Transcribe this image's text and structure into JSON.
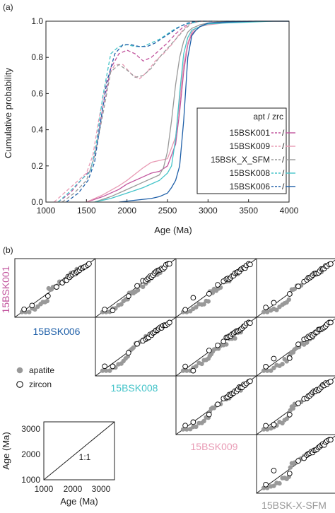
{
  "panel_labels": {
    "a": "(a)",
    "b": "(b)"
  },
  "chart_data": [
    {
      "type": "line",
      "panel": "(a)",
      "xlabel": "Age (Ma)",
      "ylabel": "Cumulative probability",
      "xlim": [
        1000,
        4000
      ],
      "ylim": [
        0,
        1
      ],
      "xticks": [
        "1000",
        "1500",
        "2000",
        "2500",
        "3000",
        "3500",
        "4000"
      ],
      "yticks": [
        "0.0",
        "0.2",
        "0.4",
        "0.6",
        "0.8",
        "1.0"
      ],
      "legend": {
        "position": "right",
        "header": "apt / zrc",
        "separator": "/",
        "samples": [
          "15BSK001",
          "15BSK009",
          "15BSK_X_SFM",
          "15BSK008",
          "15BSK006"
        ]
      },
      "series": [
        {
          "name": "15BSK001",
          "mineral": "apatite",
          "dashed": true,
          "color": "#c2559e",
          "x": [
            1150,
            1300,
            1450,
            1550,
            1620,
            1700,
            1800,
            1900,
            2000,
            2100,
            2200,
            2300,
            2400,
            2500,
            2600,
            2700,
            2800,
            2900,
            3000,
            3100
          ],
          "y": [
            0.0,
            0.05,
            0.13,
            0.18,
            0.3,
            0.52,
            0.74,
            0.82,
            0.84,
            0.82,
            0.78,
            0.8,
            0.84,
            0.88,
            0.93,
            0.97,
            0.99,
            1.0,
            1.0,
            1.0
          ]
        },
        {
          "name": "15BSK009",
          "mineral": "apatite",
          "dashed": true,
          "color": "#e89ab4",
          "x": [
            1100,
            1250,
            1400,
            1500,
            1580,
            1650,
            1750,
            1850,
            1950,
            2050,
            2150,
            2250,
            2350,
            2450,
            2550,
            2650,
            2750,
            2850,
            2950
          ],
          "y": [
            0.0,
            0.06,
            0.12,
            0.16,
            0.26,
            0.45,
            0.68,
            0.76,
            0.76,
            0.71,
            0.68,
            0.72,
            0.78,
            0.82,
            0.87,
            0.93,
            0.98,
            1.0,
            1.0
          ]
        },
        {
          "name": "15BSK_X_SFM",
          "mineral": "apatite",
          "dashed": true,
          "color": "#999999",
          "x": [
            1200,
            1350,
            1500,
            1600,
            1700,
            1800,
            1900,
            2000,
            2100,
            2200,
            2300,
            2400,
            2500,
            2600,
            2700,
            2800,
            2900,
            3000
          ],
          "y": [
            0.0,
            0.05,
            0.12,
            0.25,
            0.48,
            0.72,
            0.76,
            0.73,
            0.69,
            0.7,
            0.74,
            0.8,
            0.85,
            0.9,
            0.95,
            0.99,
            1.0,
            1.0
          ]
        },
        {
          "name": "15BSK008",
          "mineral": "apatite",
          "dashed": true,
          "color": "#45c4c9",
          "x": [
            1150,
            1300,
            1450,
            1550,
            1620,
            1700,
            1800,
            1900,
            2000,
            2100,
            2200,
            2300,
            2400,
            2500,
            2600,
            2700,
            2800,
            2900,
            3000,
            3600
          ],
          "y": [
            0.0,
            0.06,
            0.13,
            0.17,
            0.32,
            0.58,
            0.82,
            0.86,
            0.87,
            0.86,
            0.86,
            0.88,
            0.9,
            0.93,
            0.96,
            0.98,
            0.99,
            1.0,
            1.0,
            1.0
          ]
        },
        {
          "name": "15BSK006",
          "mineral": "apatite",
          "dashed": true,
          "color": "#1e5fa8",
          "x": [
            1250,
            1400,
            1520,
            1600,
            1680,
            1750,
            1850,
            1950,
            2050,
            2150,
            2250,
            2350,
            2450,
            2550,
            2650,
            2750,
            2850,
            2950,
            3050
          ],
          "y": [
            0.0,
            0.05,
            0.12,
            0.22,
            0.46,
            0.66,
            0.82,
            0.87,
            0.87,
            0.86,
            0.86,
            0.88,
            0.91,
            0.94,
            0.97,
            0.99,
            1.0,
            1.0,
            1.0
          ]
        },
        {
          "name": "15BSK001",
          "mineral": "zircon",
          "dashed": false,
          "color": "#c2559e",
          "x": [
            1500,
            1700,
            1900,
            2000,
            2200,
            2300,
            2400,
            2500,
            2600,
            2650,
            2700,
            2750,
            2800,
            2850,
            2900,
            3000,
            3200,
            3500,
            4000
          ],
          "y": [
            0.0,
            0.03,
            0.07,
            0.1,
            0.14,
            0.16,
            0.17,
            0.2,
            0.32,
            0.5,
            0.72,
            0.87,
            0.93,
            0.95,
            0.97,
            0.99,
            0.995,
            1.0,
            1.0
          ]
        },
        {
          "name": "15BSK009",
          "mineral": "zircon",
          "dashed": false,
          "color": "#e89ab4",
          "x": [
            1500,
            1700,
            1900,
            2000,
            2200,
            2300,
            2400,
            2500,
            2600,
            2650,
            2700,
            2750,
            2800,
            2850,
            2900,
            3000,
            3200,
            3500,
            4000
          ],
          "y": [
            0.0,
            0.04,
            0.09,
            0.12,
            0.19,
            0.22,
            0.23,
            0.24,
            0.36,
            0.55,
            0.76,
            0.88,
            0.94,
            0.96,
            0.97,
            0.98,
            0.99,
            1.0,
            1.0
          ]
        },
        {
          "name": "15BSK_X_SFM",
          "mineral": "zircon",
          "dashed": false,
          "color": "#999999",
          "x": [
            1600,
            1800,
            2000,
            2200,
            2400,
            2450,
            2500,
            2550,
            2600,
            2650,
            2700,
            2750,
            2800,
            2900,
            3000,
            3200,
            3500,
            4000
          ],
          "y": [
            0.0,
            0.03,
            0.07,
            0.11,
            0.15,
            0.19,
            0.28,
            0.45,
            0.65,
            0.8,
            0.89,
            0.94,
            0.96,
            0.98,
            0.99,
            1.0,
            1.0,
            1.0
          ]
        },
        {
          "name": "15BSK008",
          "mineral": "zircon",
          "dashed": false,
          "color": "#45c4c9",
          "x": [
            1600,
            1800,
            2000,
            2200,
            2300,
            2400,
            2500,
            2550,
            2600,
            2650,
            2700,
            2750,
            2800,
            2900,
            3000,
            3200,
            3500,
            3800,
            4000
          ],
          "y": [
            0.0,
            0.02,
            0.05,
            0.08,
            0.1,
            0.12,
            0.16,
            0.2,
            0.35,
            0.6,
            0.82,
            0.91,
            0.95,
            0.97,
            0.985,
            0.99,
            0.995,
            1.0,
            1.0
          ]
        },
        {
          "name": "15BSK006",
          "mineral": "zircon",
          "dashed": false,
          "color": "#1e5fa8",
          "x": [
            1900,
            2100,
            2300,
            2400,
            2500,
            2550,
            2600,
            2650,
            2700,
            2750,
            2800,
            2850,
            2900,
            3000,
            3200,
            3600,
            4000
          ],
          "y": [
            0.0,
            0.01,
            0.02,
            0.03,
            0.05,
            0.08,
            0.12,
            0.2,
            0.45,
            0.8,
            0.92,
            0.95,
            0.97,
            0.99,
            0.995,
            1.0,
            1.0
          ]
        }
      ]
    },
    {
      "type": "scatter",
      "panel": "(b)",
      "layout": "pairwise Q-Q matrix (upper triangle); diagonal labels name the samples",
      "sample_labels": [
        {
          "text": "15BSK001",
          "color": "#c2559e"
        },
        {
          "text": "15BSK006",
          "color": "#1e5fa8"
        },
        {
          "text": "15BSK008",
          "color": "#45c4c9"
        },
        {
          "text": "15BSK009",
          "color": "#e89ab4"
        },
        {
          "text": "15BSK-X-SFM",
          "color": "#999999"
        }
      ],
      "legend": [
        {
          "label": "apatite",
          "marker": "filled",
          "color": "#999999"
        },
        {
          "label": "zircon",
          "marker": "open",
          "color": "#000000"
        }
      ],
      "scale_key": {
        "xlabel": "Age (Ma)",
        "ylabel": "Age (Ma)",
        "xticks": [
          "1000",
          "2000",
          "3000"
        ],
        "yticks": [
          "1000",
          "2000",
          "3000"
        ],
        "xlim": [
          1000,
          3600
        ],
        "ylim": [
          1000,
          3600
        ],
        "line_label": "1:1"
      },
      "pairs": [
        {
          "row": "15BSK006",
          "col": "15BSK001"
        },
        {
          "row": "15BSK006",
          "col": "15BSK008"
        },
        {
          "row": "15BSK006",
          "col": "15BSK009"
        },
        {
          "row": "15BSK006",
          "col": "15BSK-X-SFM"
        },
        {
          "row": "15BSK008",
          "col": "15BSK008"
        },
        {
          "row": "15BSK008",
          "col": "15BSK009"
        },
        {
          "row": "15BSK008",
          "col": "15BSK-X-SFM"
        },
        {
          "row": "15BSK009",
          "col": "15BSK009"
        },
        {
          "row": "15BSK009",
          "col": "15BSK-X-SFM"
        },
        {
          "row": "15BSK-X-SFM",
          "col": "15BSK-X-SFM"
        }
      ]
    }
  ]
}
